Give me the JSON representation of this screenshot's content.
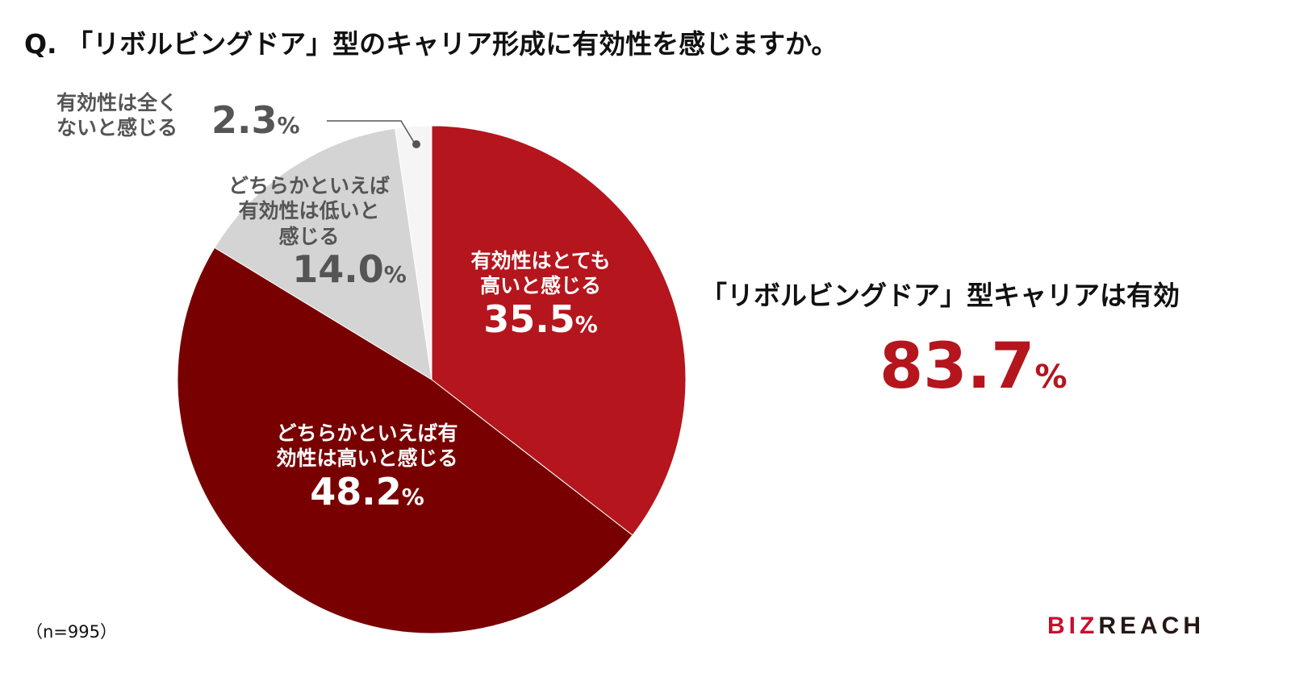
{
  "chart_data": {
    "type": "pie",
    "title": "Q. 「リボルビングドア」型のキャリア形成に有効性を感じますか。",
    "slices": [
      {
        "label": "有効性はとても高いと感じる",
        "value": 35.5,
        "display": "35.5",
        "color": "#B5151D"
      },
      {
        "label": "どちらかといえば有効性は高いと感じる",
        "value": 48.2,
        "display": "48.2",
        "color": "#780000"
      },
      {
        "label": "どちらかといえば有効性は低いと感じる",
        "value": 14.0,
        "display": "14.0",
        "color": "#D4D4D4"
      },
      {
        "label": "有効性は全くないと感じる",
        "value": 2.3,
        "display": "2.3",
        "color": "#F5F5F5"
      }
    ],
    "percent_sign": "%",
    "start": "top",
    "direction": "clockwise"
  },
  "labels": {
    "s0": [
      "有効性はとても",
      "高いと感じる"
    ],
    "s1": [
      "どちらかといえば有",
      "効性は高いと感じる"
    ],
    "s2": [
      "どちらかといえば",
      "有効性は低いと",
      "感じる"
    ],
    "s3": [
      "有効性は全く",
      "ないと感じる"
    ]
  },
  "summary": {
    "label": "「リボルビングドア」型キャリアは有効",
    "value": "83.7",
    "unit": "%"
  },
  "sample": "（n=995）",
  "logo": {
    "red": "BIZ",
    "black": "REAC",
    "mark": "H"
  }
}
